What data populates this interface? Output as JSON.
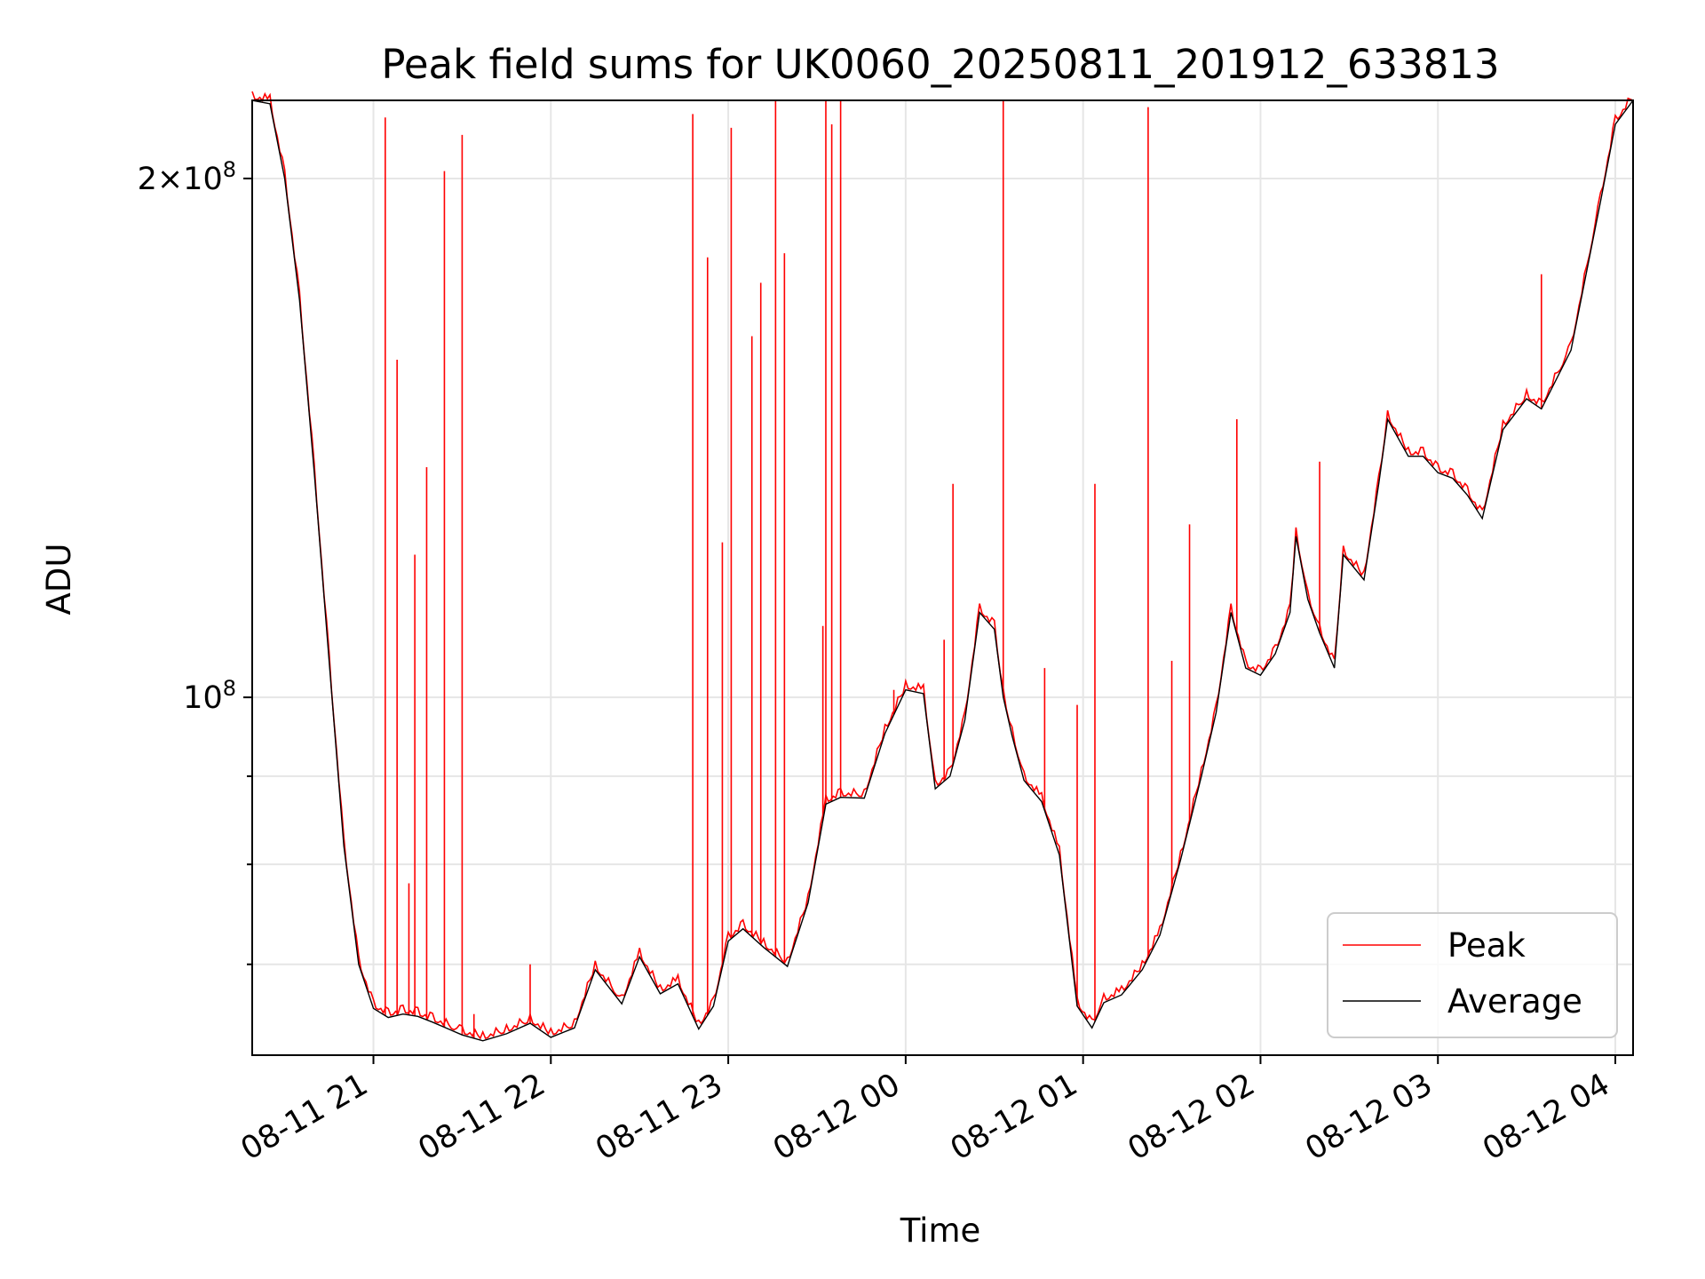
{
  "chart_data": {
    "type": "line",
    "title": "Peak field sums for UK0060_20250811_201912_633813",
    "xlabel": "Time",
    "ylabel": "ADU",
    "x_ticks": [
      "08-11 21",
      "08-11 22",
      "08-11 23",
      "08-12 00",
      "08-12 01",
      "08-12 02",
      "08-12 03",
      "08-12 04"
    ],
    "x_range": [
      "2025-08-11 20:19",
      "2025-08-12 04:06"
    ],
    "y_scale": "log",
    "ylim": [
      62000000,
      222000000
    ],
    "y_major_ticks": [
      {
        "value": 200000000,
        "mantissa": "2",
        "exponent": "8"
      },
      {
        "value": 100000000,
        "mantissa": "",
        "exponent": "8"
      }
    ],
    "y_minor_ticks": [
      70000000,
      80000000,
      90000000
    ],
    "grid": true,
    "legend_position": "lower right",
    "colors": {
      "peak": "#ff0000",
      "average": "#000000"
    },
    "series": [
      {
        "name": "Average",
        "color": "#000000",
        "x": [
          "2025-08-11 20:19",
          "2025-08-11 20:25",
          "2025-08-11 20:30",
          "2025-08-11 20:35",
          "2025-08-11 20:40",
          "2025-08-11 20:45",
          "2025-08-11 20:50",
          "2025-08-11 20:55",
          "2025-08-11 21:00",
          "2025-08-11 21:05",
          "2025-08-11 21:10",
          "2025-08-11 21:15",
          "2025-08-11 21:20",
          "2025-08-11 21:30",
          "2025-08-11 21:37",
          "2025-08-11 21:45",
          "2025-08-11 21:53",
          "2025-08-11 22:00",
          "2025-08-11 22:08",
          "2025-08-11 22:15",
          "2025-08-11 22:24",
          "2025-08-11 22:30",
          "2025-08-11 22:37",
          "2025-08-11 22:43",
          "2025-08-11 22:50",
          "2025-08-11 22:55",
          "2025-08-11 23:00",
          "2025-08-11 23:05",
          "2025-08-11 23:12",
          "2025-08-11 23:20",
          "2025-08-11 23:27",
          "2025-08-11 23:33",
          "2025-08-11 23:38",
          "2025-08-11 23:46",
          "2025-08-11 23:53",
          "2025-08-12 00:00",
          "2025-08-12 00:06",
          "2025-08-12 00:10",
          "2025-08-12 00:15",
          "2025-08-12 00:20",
          "2025-08-12 00:25",
          "2025-08-12 00:30",
          "2025-08-12 00:33",
          "2025-08-12 00:36",
          "2025-08-12 00:40",
          "2025-08-12 00:46",
          "2025-08-12 00:52",
          "2025-08-12 00:58",
          "2025-08-12 01:03",
          "2025-08-12 01:07",
          "2025-08-12 01:13",
          "2025-08-12 01:20",
          "2025-08-12 01:26",
          "2025-08-12 01:33",
          "2025-08-12 01:40",
          "2025-08-12 01:45",
          "2025-08-12 01:50",
          "2025-08-12 01:55",
          "2025-08-12 02:00",
          "2025-08-12 02:05",
          "2025-08-12 02:10",
          "2025-08-12 02:12",
          "2025-08-12 02:16",
          "2025-08-12 02:20",
          "2025-08-12 02:25",
          "2025-08-12 02:28",
          "2025-08-12 02:35",
          "2025-08-12 02:40",
          "2025-08-12 02:43",
          "2025-08-12 02:50",
          "2025-08-12 02:55",
          "2025-08-12 03:00",
          "2025-08-12 03:05",
          "2025-08-12 03:10",
          "2025-08-12 03:15",
          "2025-08-12 03:22",
          "2025-08-12 03:30",
          "2025-08-12 03:35",
          "2025-08-12 03:45",
          "2025-08-12 03:55",
          "2025-08-12 04:00",
          "2025-08-12 04:06"
        ],
        "values": [
          222000000,
          221000000,
          200000000,
          170000000,
          135000000,
          105000000,
          82000000,
          70000000,
          66000000,
          65200000,
          65500000,
          65300000,
          64800000,
          63700000,
          63200000,
          63800000,
          64700000,
          63500000,
          64300000,
          69500000,
          66400000,
          70700000,
          67300000,
          68200000,
          64200000,
          66200000,
          72200000,
          73400000,
          71600000,
          69800000,
          76000000,
          86700000,
          87500000,
          87400000,
          95300000,
          101000000,
          100500000,
          88500000,
          90000000,
          97000000,
          112000000,
          109500000,
          100000000,
          95000000,
          89500000,
          87000000,
          81000000,
          66200000,
          64300000,
          66500000,
          67200000,
          69500000,
          72800000,
          80500000,
          90000000,
          98000000,
          112000000,
          104000000,
          103000000,
          106000000,
          112000000,
          124000000,
          114000000,
          109000000,
          104000000,
          121000000,
          117000000,
          133000000,
          145000000,
          138000000,
          138000000,
          135000000,
          134000000,
          131000000,
          127000000,
          143000000,
          149000000,
          147000000,
          159000000,
          194000000,
          215000000,
          222000000
        ]
      },
      {
        "name": "Peak",
        "color": "#ff0000",
        "spikes": [
          {
            "x": "2025-08-11 21:04",
            "y": 217000000
          },
          {
            "x": "2025-08-11 21:08",
            "y": 157000000
          },
          {
            "x": "2025-08-11 21:12",
            "y": 78000000
          },
          {
            "x": "2025-08-11 21:14",
            "y": 121000000
          },
          {
            "x": "2025-08-11 21:18",
            "y": 136000000
          },
          {
            "x": "2025-08-11 21:24",
            "y": 202000000
          },
          {
            "x": "2025-08-11 21:30",
            "y": 212000000
          },
          {
            "x": "2025-08-11 21:34",
            "y": 65500000
          },
          {
            "x": "2025-08-11 21:53",
            "y": 70000000
          },
          {
            "x": "2025-08-11 22:48",
            "y": 218000000
          },
          {
            "x": "2025-08-11 22:53",
            "y": 180000000
          },
          {
            "x": "2025-08-11 22:58",
            "y": 123000000
          },
          {
            "x": "2025-08-11 23:01",
            "y": 214000000
          },
          {
            "x": "2025-08-11 23:08",
            "y": 162000000
          },
          {
            "x": "2025-08-11 23:11",
            "y": 174000000
          },
          {
            "x": "2025-08-11 23:16",
            "y": 222000000
          },
          {
            "x": "2025-08-11 23:19",
            "y": 181000000
          },
          {
            "x": "2025-08-11 23:32",
            "y": 110000000
          },
          {
            "x": "2025-08-11 23:33",
            "y": 222000000
          },
          {
            "x": "2025-08-11 23:35",
            "y": 215000000
          },
          {
            "x": "2025-08-11 23:38",
            "y": 222000000
          },
          {
            "x": "2025-08-11 23:56",
            "y": 101000000
          },
          {
            "x": "2025-08-12 00:13",
            "y": 108000000
          },
          {
            "x": "2025-08-12 00:16",
            "y": 133000000
          },
          {
            "x": "2025-08-12 00:33",
            "y": 222000000
          },
          {
            "x": "2025-08-12 00:47",
            "y": 104000000
          },
          {
            "x": "2025-08-12 00:58",
            "y": 99000000
          },
          {
            "x": "2025-08-12 01:04",
            "y": 133000000
          },
          {
            "x": "2025-08-12 01:22",
            "y": 220000000
          },
          {
            "x": "2025-08-12 01:30",
            "y": 105000000
          },
          {
            "x": "2025-08-12 01:36",
            "y": 126000000
          },
          {
            "x": "2025-08-12 01:52",
            "y": 145000000
          },
          {
            "x": "2025-08-12 02:20",
            "y": 137000000
          },
          {
            "x": "2025-08-12 03:35",
            "y": 176000000
          }
        ]
      }
    ]
  }
}
